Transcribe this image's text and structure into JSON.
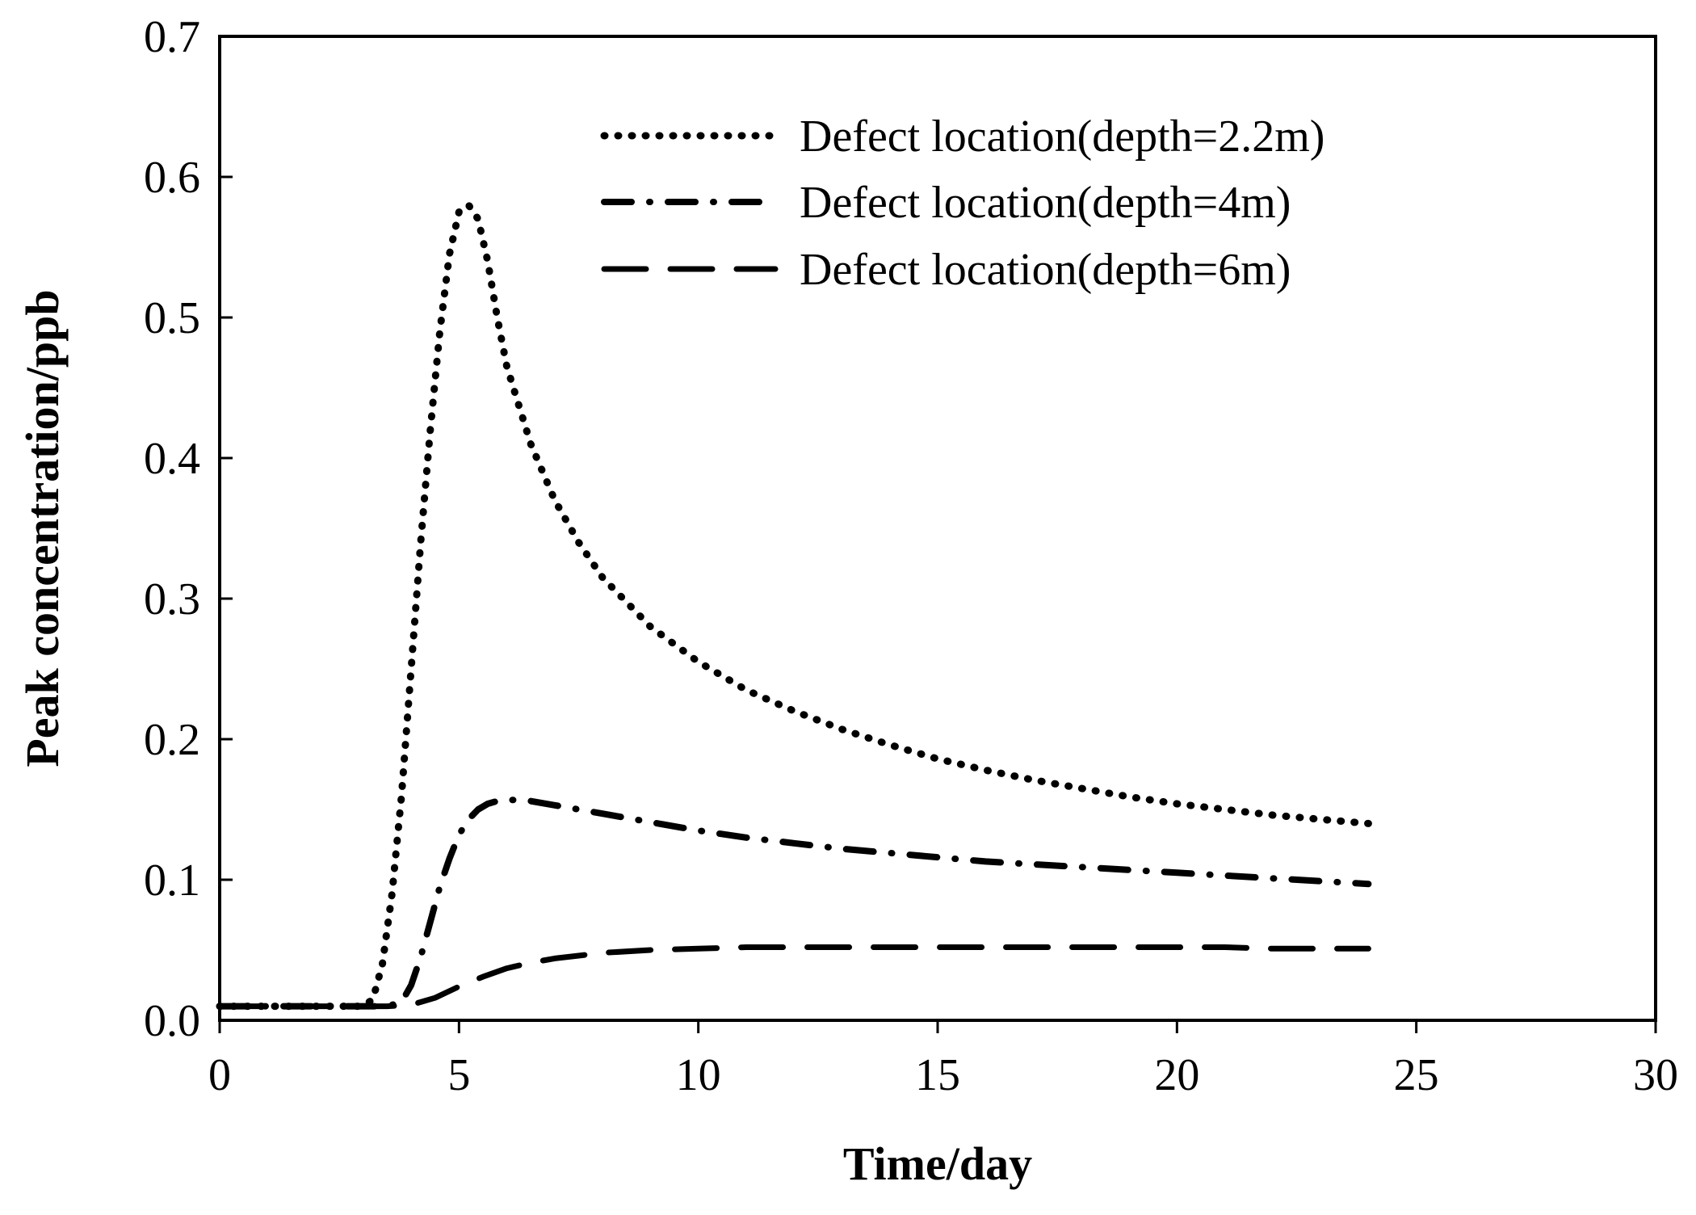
{
  "chart_data": {
    "type": "line",
    "title": "",
    "xlabel": "Time/day",
    "ylabel": "Peak concentration/ppb",
    "xlim": [
      0,
      30
    ],
    "ylim": [
      0,
      0.7
    ],
    "xticks": [
      0,
      5,
      10,
      15,
      20,
      25,
      30
    ],
    "xtick_labels": [
      "0",
      "5",
      "10",
      "15",
      "20",
      "25",
      "30"
    ],
    "yticks": [
      0,
      0.1,
      0.2,
      0.3,
      0.4,
      0.5,
      0.6,
      0.7
    ],
    "ytick_labels": [
      "0.0",
      "0.1",
      "0.2",
      "0.3",
      "0.4",
      "0.5",
      "0.6",
      "0.7"
    ],
    "grid": false,
    "legend_position": "top-right",
    "series": [
      {
        "name": "Defect location(depth=2.2m)",
        "style": "dotted",
        "color": "#000000",
        "x": [
          0,
          1,
          2,
          3,
          3.2,
          3.4,
          3.6,
          3.8,
          4.0,
          4.2,
          4.4,
          4.6,
          4.8,
          5.0,
          5.2,
          5.4,
          5.6,
          5.8,
          6.0,
          6.5,
          7.0,
          7.5,
          8.0,
          9.0,
          10.0,
          11.0,
          12.0,
          13.0,
          14.0,
          15.0,
          16.0,
          17.0,
          18.0,
          19.0,
          20.0,
          21.0,
          22.0,
          23.0,
          24.0
        ],
        "y": [
          0.01,
          0.01,
          0.01,
          0.01,
          0.015,
          0.04,
          0.09,
          0.16,
          0.25,
          0.34,
          0.42,
          0.49,
          0.545,
          0.575,
          0.58,
          0.57,
          0.54,
          0.5,
          0.465,
          0.41,
          0.37,
          0.34,
          0.315,
          0.28,
          0.255,
          0.235,
          0.22,
          0.207,
          0.196,
          0.186,
          0.178,
          0.171,
          0.165,
          0.159,
          0.154,
          0.15,
          0.146,
          0.143,
          0.14
        ]
      },
      {
        "name": "Defect location(depth=4m)",
        "style": "dash-dot",
        "color": "#000000",
        "x": [
          0,
          1,
          2,
          3,
          3.5,
          3.8,
          4.0,
          4.2,
          4.4,
          4.6,
          4.8,
          5.0,
          5.2,
          5.4,
          5.6,
          5.8,
          6.0,
          6.5,
          7.0,
          8.0,
          9.0,
          10.0,
          11.0,
          12.0,
          13.0,
          14.0,
          15.0,
          16.0,
          17.0,
          18.0,
          19.0,
          20.0,
          21.0,
          22.0,
          23.0,
          24.0
        ],
        "y": [
          0.01,
          0.01,
          0.01,
          0.01,
          0.01,
          0.013,
          0.025,
          0.045,
          0.07,
          0.095,
          0.115,
          0.132,
          0.143,
          0.15,
          0.154,
          0.156,
          0.157,
          0.156,
          0.153,
          0.147,
          0.141,
          0.135,
          0.13,
          0.126,
          0.122,
          0.119,
          0.116,
          0.113,
          0.111,
          0.109,
          0.107,
          0.105,
          0.103,
          0.101,
          0.099,
          0.097
        ]
      },
      {
        "name": "Defect location(depth=6m)",
        "style": "dashed",
        "color": "#000000",
        "x": [
          0,
          1,
          2,
          3,
          3.5,
          4.0,
          4.5,
          5.0,
          5.5,
          6.0,
          6.5,
          7.0,
          7.5,
          8.0,
          9.0,
          10.0,
          11.0,
          12.0,
          13.0,
          14.0,
          15.0,
          16.0,
          17.0,
          18.0,
          19.0,
          20.0,
          21.0,
          22.0,
          23.0,
          24.0
        ],
        "y": [
          0.01,
          0.01,
          0.01,
          0.01,
          0.01,
          0.011,
          0.016,
          0.024,
          0.031,
          0.037,
          0.041,
          0.044,
          0.046,
          0.048,
          0.05,
          0.051,
          0.052,
          0.052,
          0.052,
          0.052,
          0.052,
          0.052,
          0.052,
          0.052,
          0.052,
          0.052,
          0.052,
          0.051,
          0.051,
          0.051
        ]
      }
    ]
  }
}
